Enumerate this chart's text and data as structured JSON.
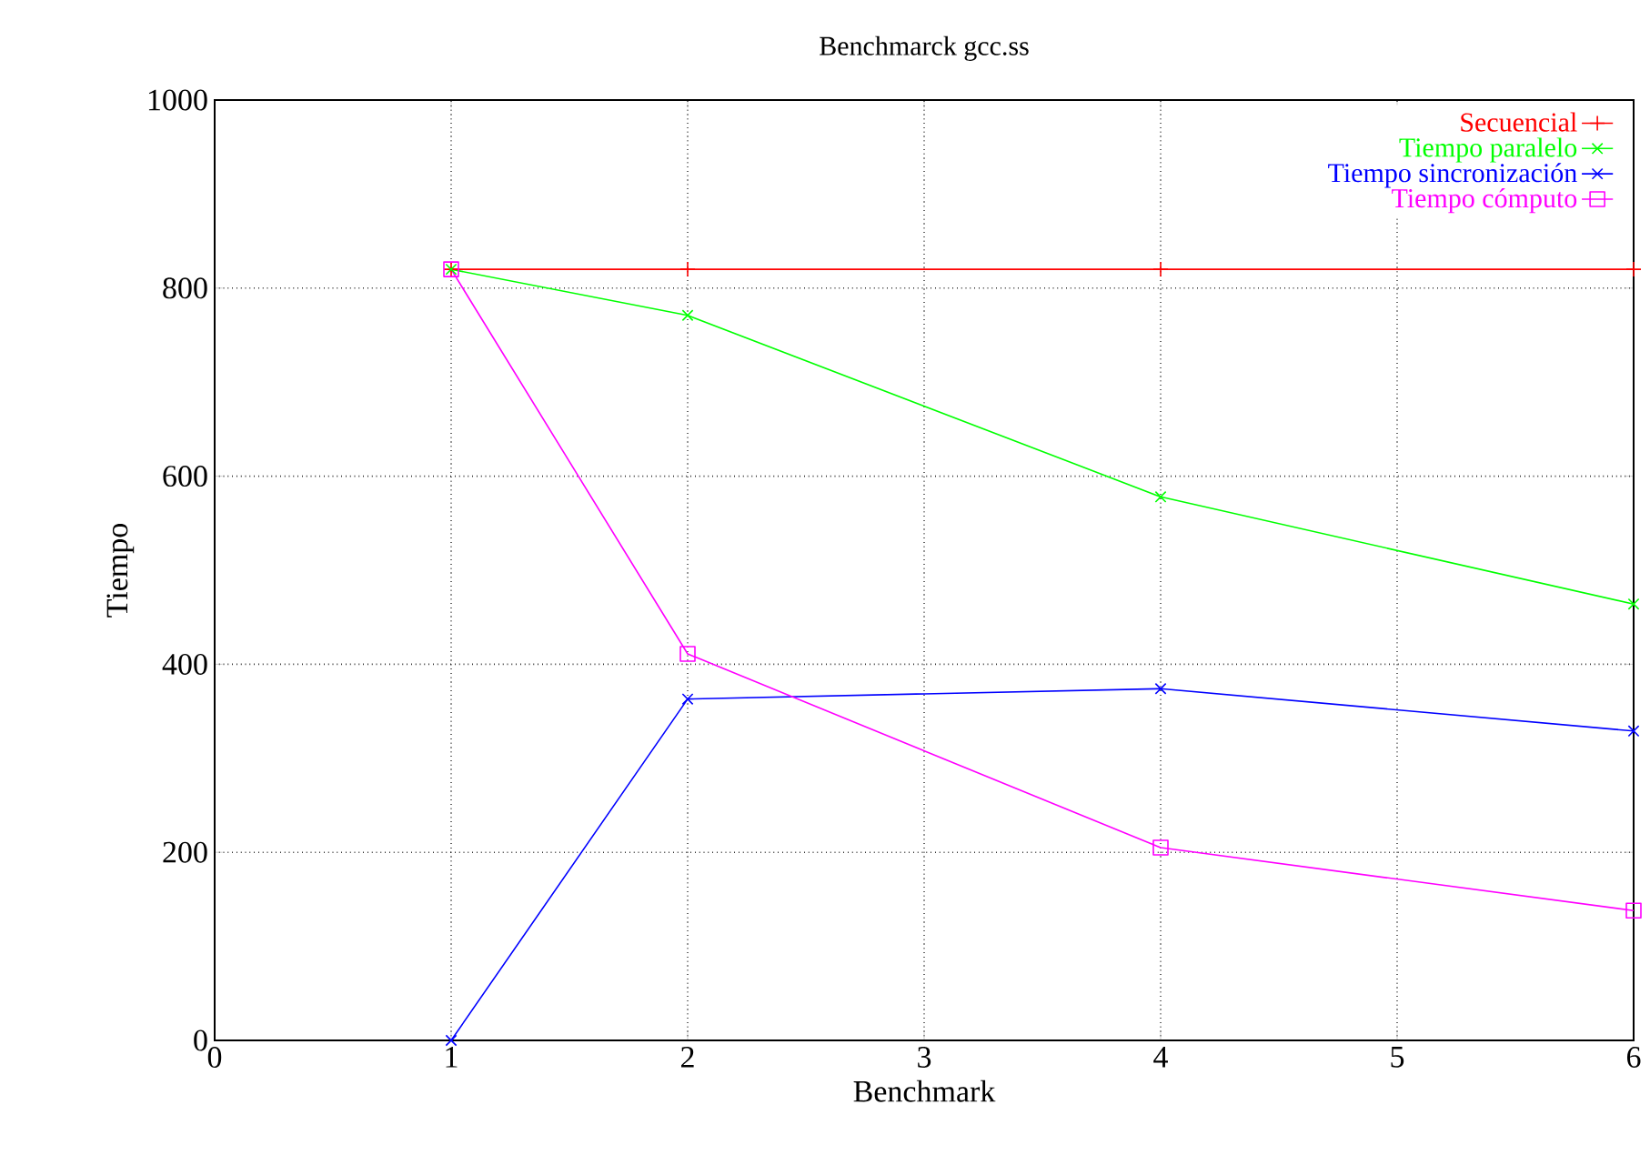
{
  "chart_data": {
    "type": "line",
    "title": "Benchmarck gcc.ss",
    "xlabel": "Benchmark",
    "ylabel": "Tiempo",
    "x": [
      1,
      2,
      4,
      6
    ],
    "series": [
      {
        "name": "Secuencial",
        "color": "#ff0000",
        "marker": "plus",
        "values": [
          820,
          820,
          820,
          820
        ]
      },
      {
        "name": "Tiempo paralelo",
        "color": "#00ff00",
        "marker": "cross",
        "values": [
          820,
          771,
          578,
          464
        ]
      },
      {
        "name": "Tiempo sincronización",
        "color": "#0000ff",
        "marker": "cross",
        "values": [
          0,
          363,
          374,
          329
        ]
      },
      {
        "name": "Tiempo cómputo",
        "color": "#ff00ff",
        "marker": "square",
        "values": [
          820,
          411,
          205,
          138
        ]
      }
    ],
    "xlim": [
      0,
      6
    ],
    "xticks": [
      0,
      1,
      2,
      3,
      4,
      5,
      6
    ],
    "ylim": [
      0,
      1000
    ],
    "yticks": [
      0,
      200,
      400,
      600,
      800,
      1000
    ],
    "grid": true,
    "legend": "top right",
    "line_style": "solid"
  }
}
